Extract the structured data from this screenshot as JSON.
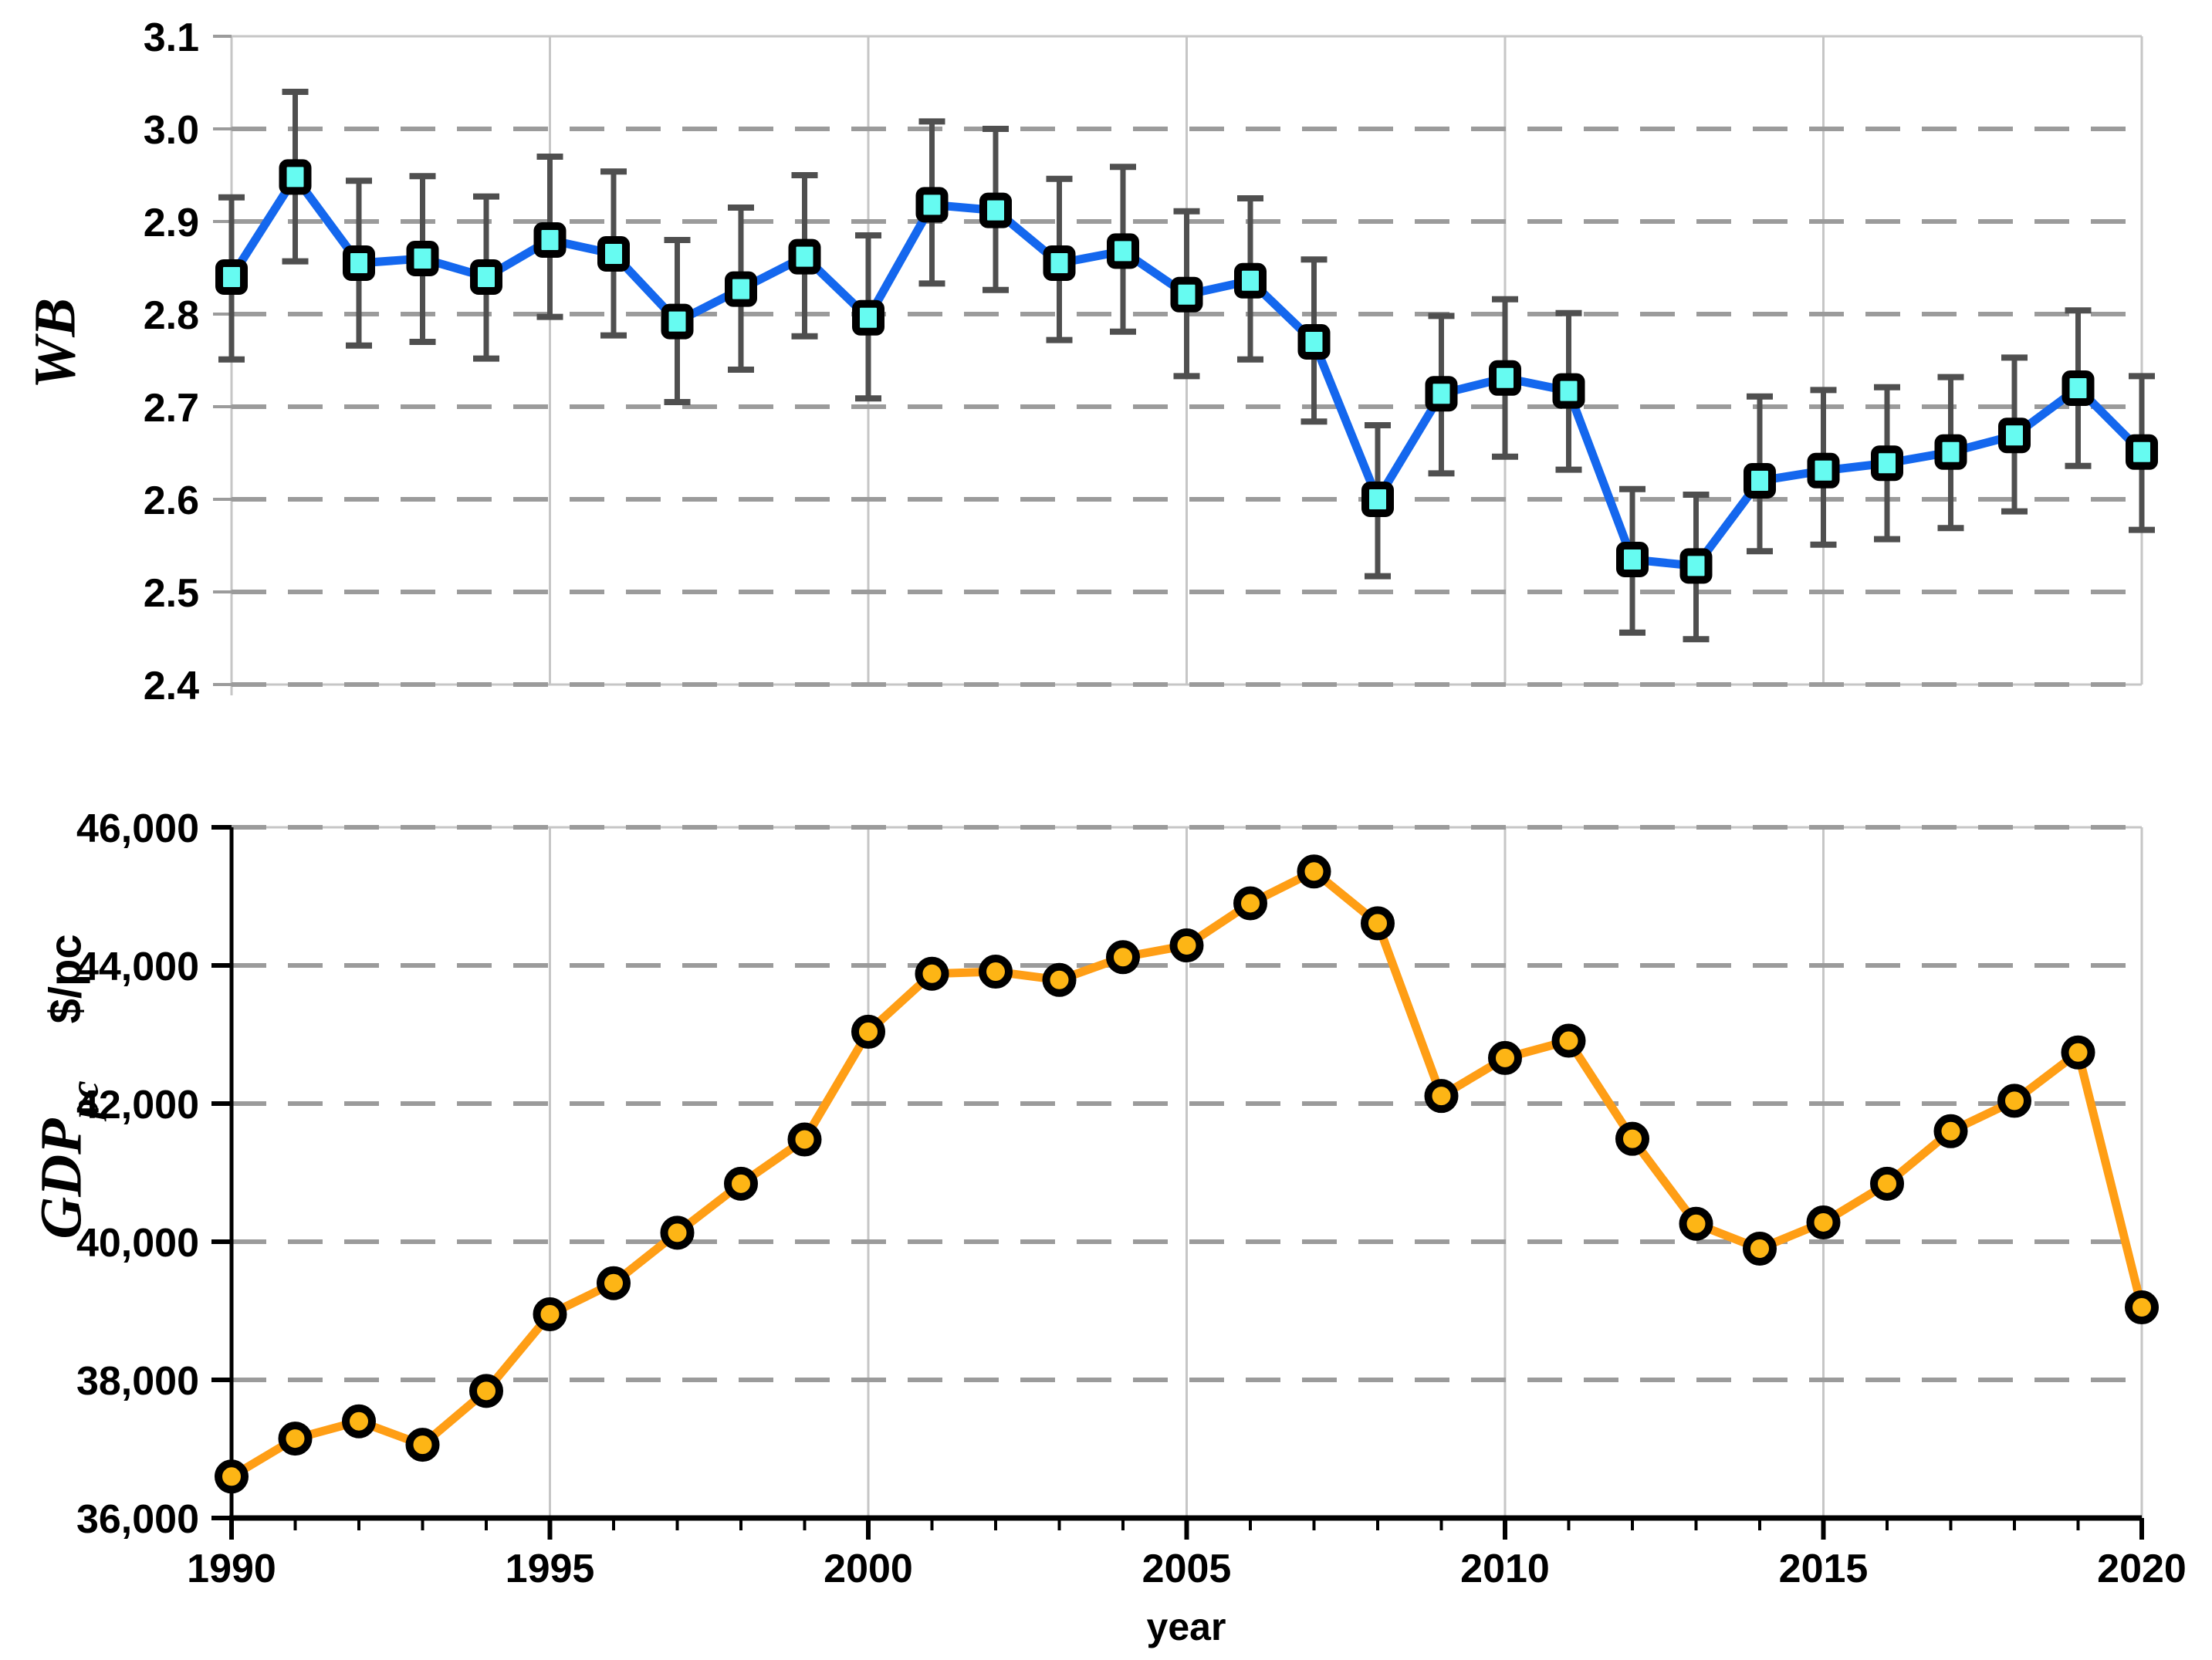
{
  "colors": {
    "wb_line": "#1467EE",
    "wb_marker_fill": "#66FBF1",
    "gdp_line": "#FF9E15",
    "gdp_marker_fill": "#FDB515",
    "marker_stroke": "#000000",
    "error_bar": "#4F4F4F",
    "grid_dashed": "#9B9B9B",
    "grid_solid": "#C6C6C6",
    "axis_black": "#000000",
    "text": "#000000",
    "background": "#FFFFFF"
  },
  "chart_data": [
    {
      "type": "line",
      "id": "wb",
      "title": "",
      "ylabel": "WB",
      "xlabel": "",
      "grid": "horizontal-dashed, vertical-solid",
      "legend": "none",
      "xlim": [
        1990,
        2020
      ],
      "ylim": [
        2.4,
        3.1
      ],
      "x_gridlines": [
        1995,
        2000,
        2005,
        2010,
        2015,
        2020
      ],
      "yticks": [
        {
          "value": 3.1,
          "label": "3.1"
        },
        {
          "value": 3.0,
          "label": "3.0"
        },
        {
          "value": 2.9,
          "label": "2.9"
        },
        {
          "value": 2.8,
          "label": "2.8"
        },
        {
          "value": 2.7,
          "label": "2.7"
        },
        {
          "value": 2.6,
          "label": "2.6"
        },
        {
          "value": 2.5,
          "label": "2.5"
        },
        {
          "value": 2.4,
          "label": "2.4"
        }
      ],
      "x": [
        1990,
        1991,
        1992,
        1993,
        1994,
        1995,
        1996,
        1997,
        1998,
        1999,
        2000,
        2001,
        2002,
        2003,
        2004,
        2005,
        2006,
        2007,
        2008,
        2009,
        2010,
        2011,
        2012,
        2013,
        2014,
        2015,
        2016,
        2017,
        2018,
        2019,
        2020
      ],
      "series": [
        {
          "name": "WB",
          "marker": "square-cyan",
          "values": [
            2.84,
            2.948,
            2.855,
            2.86,
            2.84,
            2.88,
            2.865,
            2.792,
            2.827,
            2.862,
            2.796,
            2.918,
            2.912,
            2.855,
            2.868,
            2.821,
            2.836,
            2.77,
            2.6,
            2.714,
            2.731,
            2.717,
            2.535,
            2.528,
            2.62,
            2.631,
            2.639,
            2.651,
            2.669,
            2.72,
            2.651
          ],
          "err_hi": [
            2.926,
            3.04,
            2.944,
            2.949,
            2.927,
            2.97,
            2.954,
            2.88,
            2.915,
            2.95,
            2.885,
            3.008,
            3.0,
            2.946,
            2.959,
            2.911,
            2.925,
            2.859,
            2.68,
            2.798,
            2.816,
            2.801,
            2.611,
            2.605,
            2.711,
            2.718,
            2.721,
            2.732,
            2.753,
            2.804,
            2.733
          ],
          "err_lo": [
            2.751,
            2.857,
            2.766,
            2.77,
            2.752,
            2.797,
            2.777,
            2.705,
            2.74,
            2.776,
            2.709,
            2.833,
            2.826,
            2.772,
            2.781,
            2.733,
            2.751,
            2.684,
            2.517,
            2.628,
            2.646,
            2.632,
            2.456,
            2.449,
            2.544,
            2.551,
            2.557,
            2.569,
            2.587,
            2.636,
            2.567
          ]
        }
      ]
    },
    {
      "type": "line",
      "id": "gdp",
      "title": "",
      "ylabel_main": "GDP",
      "ylabel_sub": "pc",
      "ylabel_units": "$/pc",
      "xlabel": "year",
      "grid": "horizontal-dashed, vertical-solid",
      "legend": "none",
      "xlim": [
        1990,
        2020
      ],
      "ylim": [
        36000,
        46000
      ],
      "x_gridlines": [
        1995,
        2000,
        2005,
        2010,
        2015,
        2020
      ],
      "yticks": [
        {
          "value": 46000,
          "label": "46,000"
        },
        {
          "value": 44000,
          "label": "44,000"
        },
        {
          "value": 42000,
          "label": "42,000"
        },
        {
          "value": 40000,
          "label": "40,000"
        },
        {
          "value": 38000,
          "label": "38,000"
        },
        {
          "value": 36000,
          "label": "36,000"
        }
      ],
      "xticks": [
        {
          "value": 1990,
          "label": "1990"
        },
        {
          "value": 1995,
          "label": "1995"
        },
        {
          "value": 2000,
          "label": "2000"
        },
        {
          "value": 2005,
          "label": "2005"
        },
        {
          "value": 2010,
          "label": "2010"
        },
        {
          "value": 2015,
          "label": "2015"
        },
        {
          "value": 2020,
          "label": "2020"
        }
      ],
      "x": [
        1990,
        1991,
        1992,
        1993,
        1994,
        1995,
        1996,
        1997,
        1998,
        1999,
        2000,
        2001,
        2002,
        2003,
        2004,
        2005,
        2006,
        2007,
        2008,
        2009,
        2010,
        2011,
        2012,
        2013,
        2014,
        2015,
        2016,
        2017,
        2018,
        2019,
        2020
      ],
      "series": [
        {
          "name": "GDP per capita",
          "marker": "circle-orange",
          "values": [
            36600,
            37150,
            37400,
            37060,
            37840,
            38950,
            39400,
            40130,
            40840,
            41480,
            43040,
            43880,
            43910,
            43790,
            44120,
            44290,
            44900,
            45360,
            44610,
            42110,
            42660,
            42910,
            41490,
            40260,
            39900,
            40280,
            40840,
            41600,
            42040,
            42740,
            39050
          ]
        }
      ]
    }
  ]
}
